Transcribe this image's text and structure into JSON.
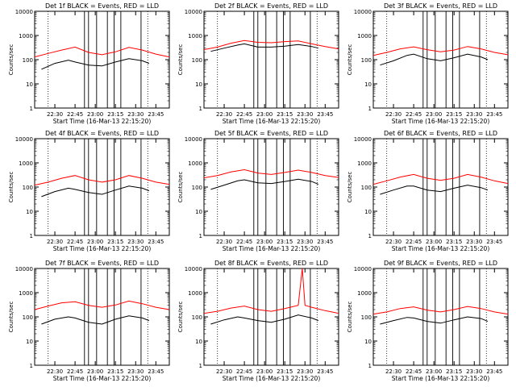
{
  "chart_data": [
    {
      "type": "line",
      "title": "Det 1f BLACK = Events, RED = LLD",
      "xlabel": "Start Time (16-Mar-13 22:15:20)",
      "ylabel": "Counts/sec",
      "yscale": "log",
      "ylim": [
        1,
        10000
      ],
      "xlim": [
        "22:15",
        "23:55"
      ],
      "xticks": [
        "22:30",
        "22:45",
        "23:00",
        "23:15",
        "23:30",
        "23:45"
      ],
      "yticks": [
        "1",
        "10",
        "100",
        "1000",
        "10000"
      ],
      "series": [
        {
          "name": "RED",
          "color": "#ff0000",
          "x": [
            "22:15",
            "22:25",
            "22:35",
            "22:45",
            "22:55",
            "23:05",
            "23:15",
            "23:25",
            "23:35",
            "23:45",
            "23:55"
          ],
          "y": [
            130,
            180,
            250,
            330,
            200,
            160,
            210,
            320,
            250,
            170,
            130
          ]
        },
        {
          "name": "BLACK",
          "color": "#000000",
          "x": [
            "22:20",
            "22:30",
            "22:40",
            "22:45",
            "22:55",
            "23:05",
            "23:15",
            "23:25",
            "23:35",
            "23:40"
          ],
          "y": [
            40,
            70,
            95,
            80,
            60,
            55,
            80,
            110,
            90,
            70
          ]
        }
      ]
    },
    {
      "type": "line",
      "title": "Det 2f BLACK = Events, RED = LLD",
      "xlabel": "Start Time (16-Mar-13 22:15:20)",
      "ylabel": "Counts/sec",
      "yscale": "log",
      "ylim": [
        1,
        10000
      ],
      "xlim": [
        "22:15",
        "23:55"
      ],
      "xticks": [
        "22:30",
        "22:45",
        "23:00",
        "23:15",
        "23:30",
        "23:45"
      ],
      "yticks": [
        "1",
        "10",
        "100",
        "1000",
        "10000"
      ],
      "series": [
        {
          "name": "RED",
          "color": "#ff0000",
          "x": [
            "22:15",
            "22:25",
            "22:35",
            "22:45",
            "22:55",
            "23:05",
            "23:15",
            "23:25",
            "23:35",
            "23:45",
            "23:55"
          ],
          "y": [
            260,
            330,
            480,
            620,
            520,
            500,
            560,
            600,
            450,
            350,
            280
          ]
        },
        {
          "name": "BLACK",
          "color": "#000000",
          "x": [
            "22:20",
            "22:30",
            "22:40",
            "22:45",
            "22:55",
            "23:05",
            "23:15",
            "23:25",
            "23:35",
            "23:40"
          ],
          "y": [
            220,
            300,
            400,
            450,
            330,
            330,
            360,
            420,
            350,
            300
          ]
        }
      ]
    },
    {
      "type": "line",
      "title": "Det 3f BLACK = Events, RED = LLD",
      "xlabel": "Start Time (16-Mar-13 22:15:20)",
      "ylabel": "Counts/sec",
      "yscale": "log",
      "ylim": [
        1,
        10000
      ],
      "xlim": [
        "22:15",
        "23:55"
      ],
      "xticks": [
        "22:30",
        "22:45",
        "23:00",
        "23:15",
        "23:30",
        "23:45"
      ],
      "yticks": [
        "1",
        "10",
        "100",
        "1000",
        "10000"
      ],
      "series": [
        {
          "name": "RED",
          "color": "#ff0000",
          "x": [
            "22:15",
            "22:25",
            "22:35",
            "22:45",
            "22:55",
            "23:05",
            "23:15",
            "23:25",
            "23:35",
            "23:45",
            "23:55"
          ],
          "y": [
            150,
            200,
            280,
            340,
            260,
            210,
            250,
            350,
            280,
            200,
            160
          ]
        },
        {
          "name": "BLACK",
          "color": "#000000",
          "x": [
            "22:20",
            "22:30",
            "22:40",
            "22:45",
            "22:55",
            "23:05",
            "23:15",
            "23:25",
            "23:35",
            "23:40"
          ],
          "y": [
            60,
            90,
            150,
            170,
            110,
            90,
            120,
            170,
            130,
            100
          ]
        }
      ]
    },
    {
      "type": "line",
      "title": "Det 4f BLACK = Events, RED = LLD",
      "xlabel": "Start Time (16-Mar-13 22:15:20)",
      "ylabel": "Counts/sec",
      "yscale": "log",
      "ylim": [
        1,
        10000
      ],
      "xlim": [
        "22:15",
        "23:55"
      ],
      "xticks": [
        "22:30",
        "22:45",
        "23:00",
        "23:15",
        "23:30",
        "23:45"
      ],
      "yticks": [
        "1",
        "10",
        "100",
        "1000",
        "10000"
      ],
      "series": [
        {
          "name": "RED",
          "color": "#ff0000",
          "x": [
            "22:15",
            "22:25",
            "22:35",
            "22:45",
            "22:55",
            "23:05",
            "23:15",
            "23:25",
            "23:35",
            "23:45",
            "23:55"
          ],
          "y": [
            120,
            160,
            230,
            300,
            200,
            160,
            200,
            300,
            230,
            160,
            130
          ]
        },
        {
          "name": "BLACK",
          "color": "#000000",
          "x": [
            "22:20",
            "22:30",
            "22:40",
            "22:45",
            "22:55",
            "23:05",
            "23:15",
            "23:25",
            "23:35",
            "23:40"
          ],
          "y": [
            40,
            65,
            90,
            80,
            60,
            50,
            75,
            110,
            90,
            70
          ]
        }
      ]
    },
    {
      "type": "line",
      "title": "Det 5f BLACK = Events, RED = LLD",
      "xlabel": "Start Time (16-Mar-13 22:15:20)",
      "ylabel": "Counts/sec",
      "yscale": "log",
      "ylim": [
        1,
        10000
      ],
      "xlim": [
        "22:15",
        "23:55"
      ],
      "xticks": [
        "22:30",
        "22:45",
        "23:00",
        "23:15",
        "23:30",
        "23:45"
      ],
      "yticks": [
        "1",
        "10",
        "100",
        "1000",
        "10000"
      ],
      "series": [
        {
          "name": "RED",
          "color": "#ff0000",
          "x": [
            "22:15",
            "22:25",
            "22:35",
            "22:45",
            "22:55",
            "23:05",
            "23:15",
            "23:25",
            "23:35",
            "23:45",
            "23:55"
          ],
          "y": [
            240,
            300,
            420,
            520,
            380,
            330,
            400,
            500,
            400,
            300,
            250
          ]
        },
        {
          "name": "BLACK",
          "color": "#000000",
          "x": [
            "22:20",
            "22:30",
            "22:40",
            "22:45",
            "22:55",
            "23:05",
            "23:15",
            "23:25",
            "23:35",
            "23:40"
          ],
          "y": [
            80,
            120,
            180,
            200,
            150,
            140,
            170,
            210,
            170,
            130
          ]
        }
      ]
    },
    {
      "type": "line",
      "title": "Det 6f BLACK = Events, RED = LLD",
      "xlabel": "Start Time (16-Mar-13 22:15:20)",
      "ylabel": "Counts/sec",
      "yscale": "log",
      "ylim": [
        1,
        10000
      ],
      "xlim": [
        "22:15",
        "23:55"
      ],
      "xticks": [
        "22:30",
        "22:45",
        "23:00",
        "23:15",
        "23:30",
        "23:45"
      ],
      "yticks": [
        "1",
        "10",
        "100",
        "1000",
        "10000"
      ],
      "series": [
        {
          "name": "RED",
          "color": "#ff0000",
          "x": [
            "22:15",
            "22:25",
            "22:35",
            "22:45",
            "22:55",
            "23:05",
            "23:15",
            "23:25",
            "23:35",
            "23:45",
            "23:55"
          ],
          "y": [
            130,
            180,
            260,
            330,
            230,
            190,
            230,
            330,
            260,
            180,
            140
          ]
        },
        {
          "name": "BLACK",
          "color": "#000000",
          "x": [
            "22:20",
            "22:30",
            "22:40",
            "22:45",
            "22:55",
            "23:05",
            "23:15",
            "23:25",
            "23:35",
            "23:40"
          ],
          "y": [
            50,
            75,
            110,
            110,
            75,
            65,
            90,
            120,
            95,
            75
          ]
        }
      ]
    },
    {
      "type": "line",
      "title": "Det 7f BLACK = Events, RED = LLD",
      "xlabel": "Start Time (16-Mar-13 22:15:20)",
      "ylabel": "Counts/sec",
      "yscale": "log",
      "ylim": [
        1,
        10000
      ],
      "xlim": [
        "22:15",
        "23:55"
      ],
      "xticks": [
        "22:30",
        "22:45",
        "23:00",
        "23:15",
        "23:30",
        "23:45"
      ],
      "yticks": [
        "1",
        "10",
        "100",
        "1000",
        "10000"
      ],
      "series": [
        {
          "name": "RED",
          "color": "#ff0000",
          "x": [
            "22:15",
            "22:25",
            "22:35",
            "22:45",
            "22:55",
            "23:05",
            "23:15",
            "23:25",
            "23:35",
            "23:45",
            "23:55"
          ],
          "y": [
            200,
            280,
            380,
            420,
            300,
            250,
            310,
            450,
            350,
            250,
            200
          ]
        },
        {
          "name": "BLACK",
          "color": "#000000",
          "x": [
            "22:20",
            "22:30",
            "22:40",
            "22:45",
            "22:55",
            "23:05",
            "23:15",
            "23:25",
            "23:35",
            "23:40"
          ],
          "y": [
            50,
            80,
            100,
            90,
            60,
            50,
            80,
            110,
            90,
            70
          ]
        }
      ]
    },
    {
      "type": "line",
      "title": "Det 8f BLACK = Events, RED = LLD",
      "xlabel": "Start Time (16-Mar-13 22:15:20)",
      "ylabel": "Counts/sec",
      "yscale": "log",
      "ylim": [
        1,
        10000
      ],
      "xlim": [
        "22:15",
        "23:55"
      ],
      "xticks": [
        "22:30",
        "22:45",
        "23:00",
        "23:15",
        "23:30",
        "23:45"
      ],
      "yticks": [
        "1",
        "10",
        "100",
        "1000",
        "10000"
      ],
      "series": [
        {
          "name": "RED",
          "color": "#ff0000",
          "x": [
            "22:15",
            "22:25",
            "22:35",
            "22:45",
            "22:55",
            "23:05",
            "23:15",
            "23:25",
            "23:28",
            "23:30",
            "23:35",
            "23:45",
            "23:55"
          ],
          "y": [
            140,
            170,
            230,
            280,
            200,
            170,
            220,
            300,
            10000,
            300,
            250,
            180,
            140
          ]
        },
        {
          "name": "BLACK",
          "color": "#000000",
          "x": [
            "22:20",
            "22:30",
            "22:40",
            "22:45",
            "22:55",
            "23:05",
            "23:15",
            "23:25",
            "23:35",
            "23:40"
          ],
          "y": [
            50,
            75,
            100,
            90,
            70,
            60,
            80,
            120,
            90,
            70
          ]
        }
      ]
    },
    {
      "type": "line",
      "title": "Det 9f BLACK = Events, RED = LLD",
      "xlabel": "Start Time (16-Mar-13 22:15:20)",
      "ylabel": "Counts/sec",
      "yscale": "log",
      "ylim": [
        1,
        10000
      ],
      "xlim": [
        "22:15",
        "23:55"
      ],
      "xticks": [
        "22:30",
        "22:45",
        "23:00",
        "23:15",
        "23:30",
        "23:45"
      ],
      "yticks": [
        "1",
        "10",
        "100",
        "1000",
        "10000"
      ],
      "series": [
        {
          "name": "RED",
          "color": "#ff0000",
          "x": [
            "22:15",
            "22:25",
            "22:35",
            "22:45",
            "22:55",
            "23:05",
            "23:15",
            "23:25",
            "23:35",
            "23:45",
            "23:55"
          ],
          "y": [
            130,
            160,
            220,
            260,
            190,
            160,
            200,
            270,
            220,
            160,
            130
          ]
        },
        {
          "name": "BLACK",
          "color": "#000000",
          "x": [
            "22:20",
            "22:30",
            "22:40",
            "22:45",
            "22:55",
            "23:05",
            "23:15",
            "23:25",
            "23:35",
            "23:40"
          ],
          "y": [
            50,
            70,
            95,
            90,
            65,
            55,
            75,
            100,
            85,
            65
          ]
        }
      ]
    }
  ],
  "markers": {
    "dotted_times": [
      "22:25",
      "23:39"
    ],
    "solid_times": [
      "22:52",
      "22:55",
      "23:01",
      "23:09",
      "23:14",
      "23:19",
      "23:34"
    ]
  }
}
